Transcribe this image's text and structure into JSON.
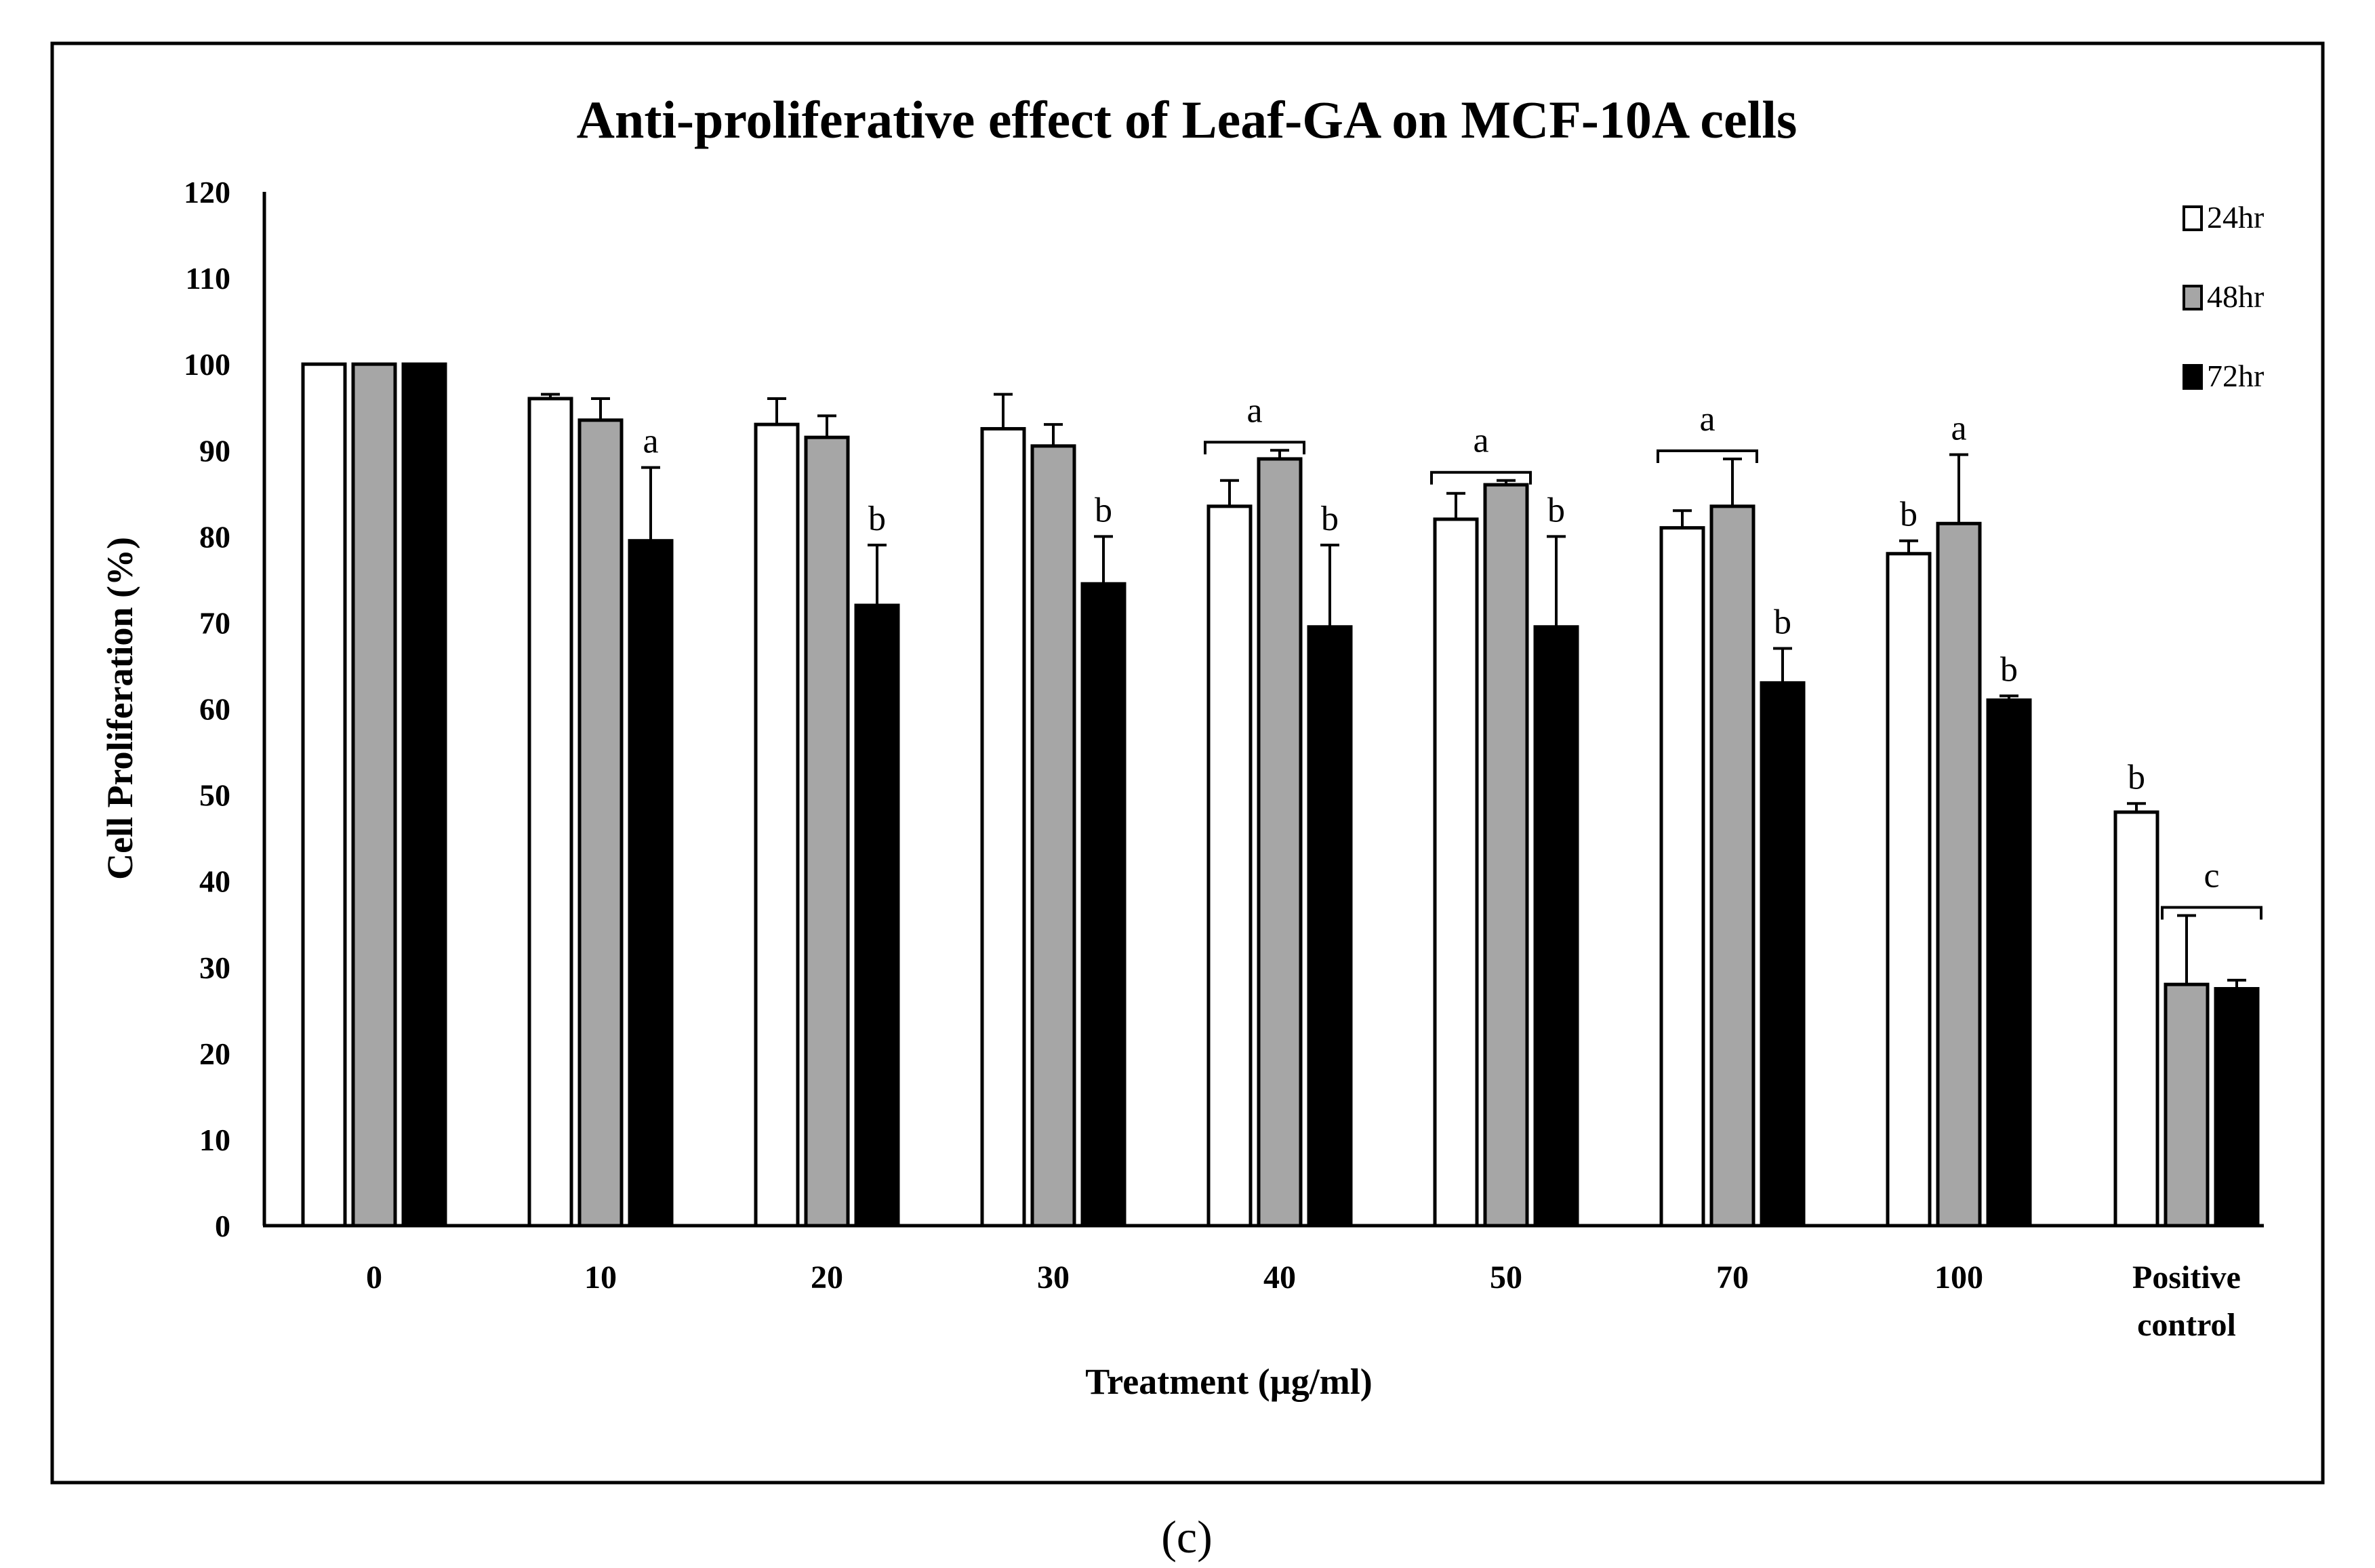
{
  "figure_label": "(c)",
  "chart_data": {
    "type": "bar",
    "title": "Anti-proliferative effect of Leaf-GA on MCF-10A cells",
    "xlabel": "Treatment (µg/ml)",
    "ylabel": "Cell Proliferation (%)",
    "ylim": [
      0,
      120
    ],
    "yticks": [
      "0",
      "10",
      "20",
      "30",
      "40",
      "50",
      "60",
      "70",
      "80",
      "90",
      "100",
      "110",
      "120"
    ],
    "grid": false,
    "legend_position": "top-right",
    "categories": [
      [
        "0"
      ],
      [
        "10"
      ],
      [
        "20"
      ],
      [
        "30"
      ],
      [
        "40"
      ],
      [
        "50"
      ],
      [
        "70"
      ],
      [
        "100"
      ],
      [
        "Positive",
        "control"
      ]
    ],
    "series": [
      {
        "name": "24hr",
        "color": "#ffffff",
        "values": [
          100,
          96,
          93,
          92.5,
          83.5,
          82,
          81,
          78,
          48
        ],
        "errors": [
          0,
          0.5,
          3,
          4,
          3,
          3,
          2,
          1.5,
          1
        ]
      },
      {
        "name": "48hr",
        "color": "#a6a6a6",
        "values": [
          100,
          93.5,
          91.5,
          90.5,
          89,
          86,
          83.5,
          81.5,
          28
        ],
        "errors": [
          0,
          2.5,
          2.5,
          2.5,
          1,
          0.5,
          5.5,
          8,
          8
        ]
      },
      {
        "name": "72hr",
        "color": "#000000",
        "values": [
          100,
          79.5,
          72,
          74.5,
          69.5,
          69.5,
          63,
          61,
          27.5
        ],
        "errors": [
          0,
          8.5,
          7,
          5.5,
          9.5,
          10.5,
          4,
          0.5,
          1
        ]
      }
    ],
    "annotations": [
      {
        "category": 1,
        "series": [
          2
        ],
        "label": "a"
      },
      {
        "category": 2,
        "series": [
          2
        ],
        "label": "b"
      },
      {
        "category": 3,
        "series": [
          2
        ],
        "label": "b"
      },
      {
        "category": 4,
        "series": [
          0,
          1
        ],
        "label": "a"
      },
      {
        "category": 4,
        "series": [
          2
        ],
        "label": "b"
      },
      {
        "category": 5,
        "series": [
          0,
          1
        ],
        "label": "a"
      },
      {
        "category": 5,
        "series": [
          2
        ],
        "label": "b"
      },
      {
        "category": 6,
        "series": [
          0,
          1
        ],
        "label": "a"
      },
      {
        "category": 6,
        "series": [
          2
        ],
        "label": "b"
      },
      {
        "category": 7,
        "series": [
          0
        ],
        "label": "b"
      },
      {
        "category": 7,
        "series": [
          1
        ],
        "label": "a"
      },
      {
        "category": 7,
        "series": [
          2
        ],
        "label": "b"
      },
      {
        "category": 8,
        "series": [
          0
        ],
        "label": "b"
      },
      {
        "category": 8,
        "series": [
          1,
          2
        ],
        "label": "c"
      }
    ]
  }
}
